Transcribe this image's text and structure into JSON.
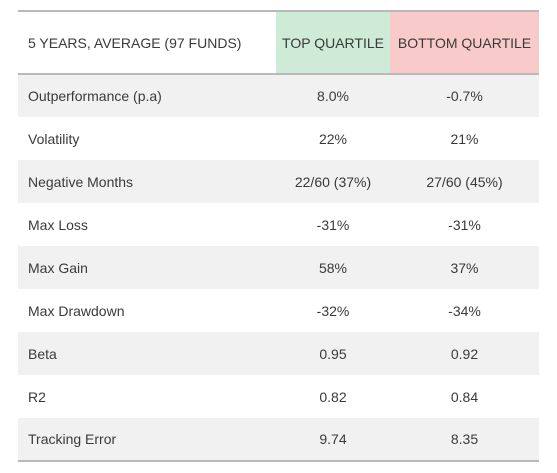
{
  "table": {
    "headers": {
      "label": "5 YEARS, AVERAGE (97 FUNDS)",
      "top": "TOP QUARTILE",
      "bottom": "BOTTOM QUARTILE"
    },
    "colors": {
      "top_header_bg": "#cdebd7",
      "bottom_header_bg": "#f9caca",
      "stripe": "#f1f1f1"
    },
    "rows": [
      {
        "label": "Outperformance (p.a)",
        "top": "8.0%",
        "bottom": "-0.7%"
      },
      {
        "label": "Volatility",
        "top": "22%",
        "bottom": "21%"
      },
      {
        "label": "Negative Months",
        "top": "22/60 (37%)",
        "bottom": "27/60 (45%)"
      },
      {
        "label": "Max Loss",
        "top": "-31%",
        "bottom": "-31%"
      },
      {
        "label": "Max Gain",
        "top": "58%",
        "bottom": "37%"
      },
      {
        "label": "Max Drawdown",
        "top": "-32%",
        "bottom": "-34%"
      },
      {
        "label": "Beta",
        "top": "0.95",
        "bottom": "0.92"
      },
      {
        "label": "R2",
        "top": "0.82",
        "bottom": "0.84"
      },
      {
        "label": "Tracking Error",
        "top": "9.74",
        "bottom": "8.35"
      }
    ]
  }
}
